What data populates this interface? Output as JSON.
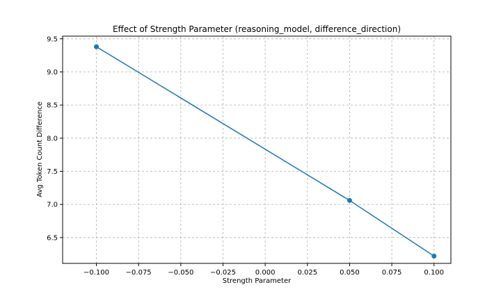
{
  "chart_data": {
    "type": "line",
    "title": "Effect of Strength Parameter (reasoning_model, difference_direction)",
    "xlabel": "Strength Parameter",
    "ylabel": "Avg Token Count Difference",
    "xlim": [
      -0.12,
      0.11
    ],
    "ylim": [
      6.11,
      9.54
    ],
    "x_ticks": [
      -0.1,
      -0.075,
      -0.05,
      -0.025,
      0.0,
      0.025,
      0.05,
      0.075,
      0.1
    ],
    "x_tick_labels": [
      "−0.100",
      "−0.075",
      "−0.050",
      "−0.025",
      "0.000",
      "0.025",
      "0.050",
      "0.075",
      "0.100"
    ],
    "y_ticks": [
      6.5,
      7.0,
      7.5,
      8.0,
      8.5,
      9.0,
      9.5
    ],
    "y_tick_labels": [
      "6.5",
      "7.0",
      "7.5",
      "8.0",
      "8.5",
      "9.0",
      "9.5"
    ],
    "grid": true,
    "series": [
      {
        "x": [
          -0.1,
          0.05,
          0.1
        ],
        "y": [
          9.38,
          7.06,
          6.22
        ],
        "color": "#1f77b4",
        "marker": "circle"
      }
    ]
  }
}
